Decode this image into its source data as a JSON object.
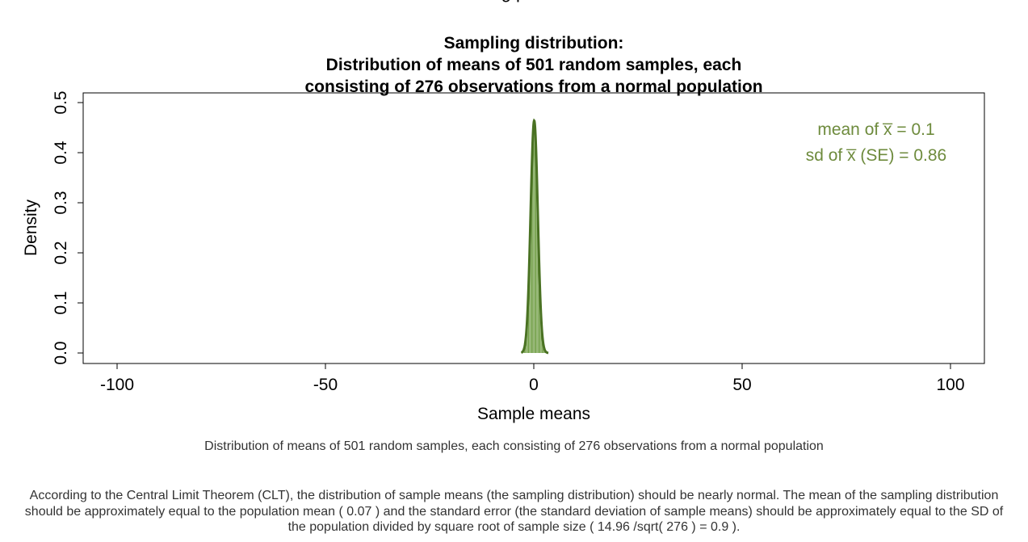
{
  "page_header_fragment": "g    p",
  "chart_data": {
    "type": "area",
    "title_lines": [
      "Sampling distribution:",
      "Distribution of means of 501 random samples, each",
      "consisting of 276 observations from a normal population"
    ],
    "xlabel": "Sample means",
    "ylabel": "Density",
    "xlim": [
      -100,
      100
    ],
    "ylim": [
      0,
      0.5
    ],
    "x_ticks": [
      -100,
      -50,
      0,
      50,
      100
    ],
    "x_tick_labels": [
      "-100",
      "-50",
      "0",
      "50",
      "100"
    ],
    "y_ticks": [
      0,
      0.1,
      0.2,
      0.3,
      0.4,
      0.5
    ],
    "y_tick_labels": [
      "0.0",
      "0.1",
      "0.2",
      "0.3",
      "0.4",
      "0.5"
    ],
    "curve": {
      "mean": 0.1,
      "sd": 0.86,
      "x_range": [
        -3,
        3.5
      ]
    },
    "annotations": {
      "mean_line": "mean of  x̅ = 0.1",
      "sd_line": "sd of  x̅ (SE) = 0.86"
    },
    "colors": {
      "curve": "#4a7223",
      "fill_lines": "#6b9a3e",
      "annotation": "#6e8b3d",
      "axis": "#000000"
    },
    "grid": false,
    "box": true
  },
  "figure_caption": "Distribution of means of 501 random samples, each consisting of 276 observations from a normal population",
  "clt_note": "According to the Central Limit Theorem (CLT), the distribution of sample means (the sampling distribution) should be nearly normal. The mean of the sampling distribution should be approximately equal to the population mean ( 0.07 ) and the standard error (the standard deviation of sample means) should be approximately equal to the SD of the population divided by square root of sample size ( 14.96 /sqrt( 276 ) = 0.9 )."
}
